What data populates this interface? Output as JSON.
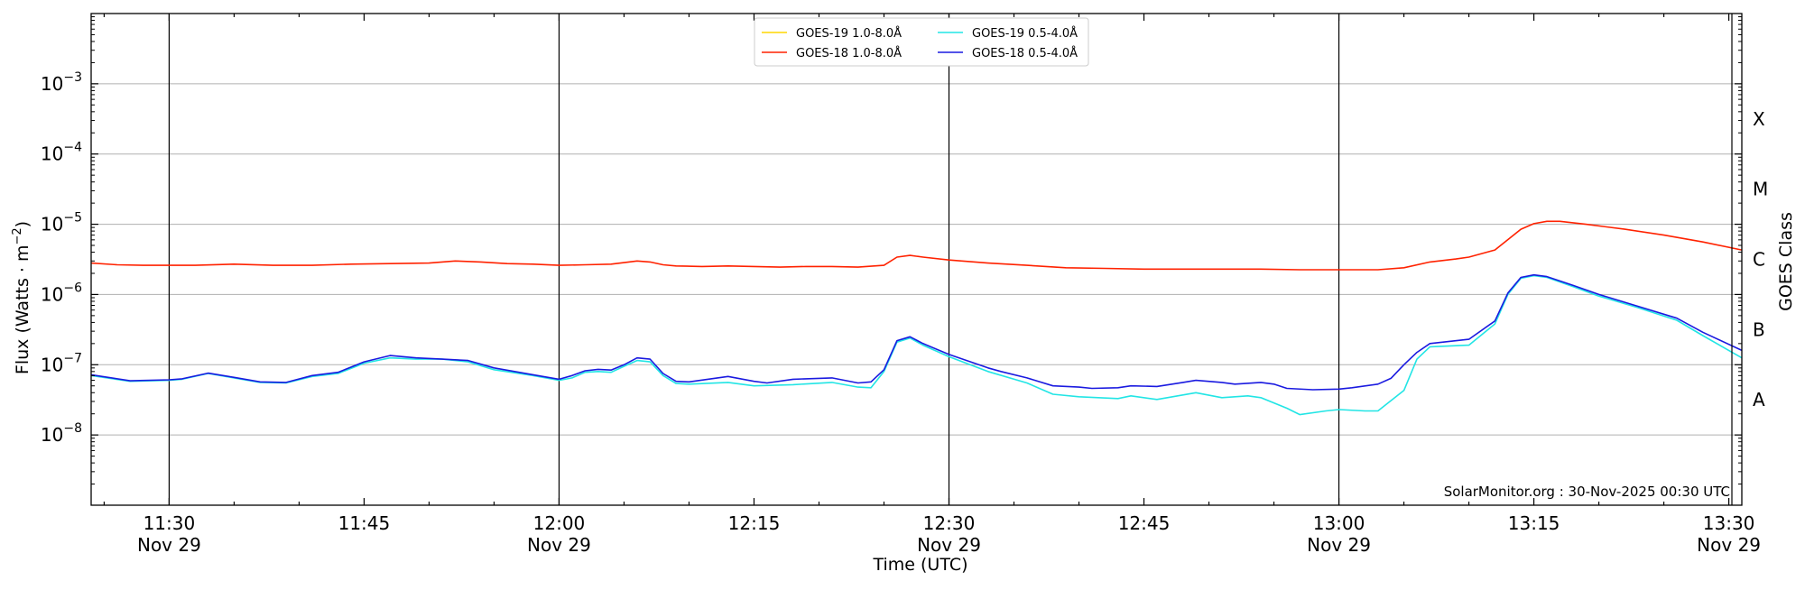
{
  "chart_data": {
    "type": "line",
    "xlabel": "Time (UTC)",
    "ylabel": "Flux (Watts · m",
    "ylabel_sup": "−2",
    "ylabel_close": ")",
    "right_label": "GOES Class",
    "annotation": "SolarMonitor.org : 30-Nov-2025 00:30 UTC",
    "x_range": [
      "11:24",
      "13:31"
    ],
    "y_scale": "log",
    "y_range": [
      1e-09,
      0.01
    ],
    "grid": "horizontal",
    "legend_position": "top-center",
    "x_ticks_major": [
      {
        "time": "11:30",
        "label": "11:30",
        "sublabel": "Nov 29"
      },
      {
        "time": "11:45",
        "label": "11:45",
        "sublabel": ""
      },
      {
        "time": "12:00",
        "label": "12:00",
        "sublabel": "Nov 29"
      },
      {
        "time": "12:15",
        "label": "12:15",
        "sublabel": ""
      },
      {
        "time": "12:30",
        "label": "12:30",
        "sublabel": "Nov 29"
      },
      {
        "time": "12:45",
        "label": "12:45",
        "sublabel": ""
      },
      {
        "time": "13:00",
        "label": "13:00",
        "sublabel": "Nov 29"
      },
      {
        "time": "13:15",
        "label": "13:15",
        "sublabel": ""
      },
      {
        "time": "13:30",
        "label": "13:30",
        "sublabel": "Nov 29"
      }
    ],
    "vertical_lines": [
      "11:30",
      "12:00",
      "12:30",
      "13:00"
    ],
    "y_ticks": [
      {
        "value": 1e-08,
        "base": "10",
        "exp": "−8"
      },
      {
        "value": 1e-07,
        "base": "10",
        "exp": "−7"
      },
      {
        "value": 1e-06,
        "base": "10",
        "exp": "−6"
      },
      {
        "value": 1e-05,
        "base": "10",
        "exp": "−5"
      },
      {
        "value": 0.0001,
        "base": "10",
        "exp": "−4"
      },
      {
        "value": 0.001,
        "base": "10",
        "exp": "−3"
      }
    ],
    "goes_classes": [
      {
        "label": "A",
        "value": 3.16e-08
      },
      {
        "label": "B",
        "value": 3.16e-07
      },
      {
        "label": "C",
        "value": 3.16e-06
      },
      {
        "label": "M",
        "value": 3.16e-05
      },
      {
        "label": "X",
        "value": 0.000316
      }
    ],
    "series": [
      {
        "name": "GOES-19 1.0-8.0Å",
        "color": "#ffd700",
        "visible": false,
        "points": []
      },
      {
        "name": "GOES-18 1.0-8.0Å",
        "color": "#ff2200",
        "points": [
          [
            "11:24",
            2.8e-06
          ],
          [
            "11:26",
            2.65e-06
          ],
          [
            "11:28",
            2.6e-06
          ],
          [
            "11:30",
            2.6e-06
          ],
          [
            "11:32",
            2.6e-06
          ],
          [
            "11:35",
            2.7e-06
          ],
          [
            "11:38",
            2.6e-06
          ],
          [
            "11:41",
            2.6e-06
          ],
          [
            "11:44",
            2.7e-06
          ],
          [
            "11:47",
            2.75e-06
          ],
          [
            "11:50",
            2.8e-06
          ],
          [
            "11:52",
            3e-06
          ],
          [
            "11:54",
            2.9e-06
          ],
          [
            "11:56",
            2.75e-06
          ],
          [
            "11:58",
            2.7e-06
          ],
          [
            "12:00",
            2.6e-06
          ],
          [
            "12:02",
            2.65e-06
          ],
          [
            "12:04",
            2.7e-06
          ],
          [
            "12:06",
            3e-06
          ],
          [
            "12:07",
            2.9e-06
          ],
          [
            "12:08",
            2.65e-06
          ],
          [
            "12:09",
            2.55e-06
          ],
          [
            "12:11",
            2.5e-06
          ],
          [
            "12:13",
            2.55e-06
          ],
          [
            "12:15",
            2.5e-06
          ],
          [
            "12:17",
            2.45e-06
          ],
          [
            "12:19",
            2.5e-06
          ],
          [
            "12:21",
            2.5e-06
          ],
          [
            "12:23",
            2.45e-06
          ],
          [
            "12:25",
            2.6e-06
          ],
          [
            "12:26",
            3.4e-06
          ],
          [
            "12:27",
            3.6e-06
          ],
          [
            "12:28",
            3.4e-06
          ],
          [
            "12:30",
            3.1e-06
          ],
          [
            "12:33",
            2.8e-06
          ],
          [
            "12:36",
            2.6e-06
          ],
          [
            "12:39",
            2.4e-06
          ],
          [
            "12:42",
            2.35e-06
          ],
          [
            "12:45",
            2.3e-06
          ],
          [
            "12:48",
            2.3e-06
          ],
          [
            "12:51",
            2.3e-06
          ],
          [
            "12:54",
            2.3e-06
          ],
          [
            "12:57",
            2.25e-06
          ],
          [
            "13:00",
            2.25e-06
          ],
          [
            "13:03",
            2.25e-06
          ],
          [
            "13:05",
            2.4e-06
          ],
          [
            "13:07",
            2.9e-06
          ],
          [
            "13:09",
            3.2e-06
          ],
          [
            "13:10",
            3.4e-06
          ],
          [
            "13:12",
            4.3e-06
          ],
          [
            "13:14",
            8.5e-06
          ],
          [
            "13:15",
            1.02e-05
          ],
          [
            "13:16",
            1.1e-05
          ],
          [
            "13:17",
            1.1e-05
          ],
          [
            "13:19",
            1e-05
          ],
          [
            "13:22",
            8.5e-06
          ],
          [
            "13:25",
            7e-06
          ],
          [
            "13:28",
            5.6e-06
          ],
          [
            "13:31",
            4.3e-06
          ]
        ]
      },
      {
        "name": "GOES-19 0.5-4.0Å",
        "color": "#22e5e5",
        "points": [
          [
            "11:24",
            7e-08
          ],
          [
            "11:27",
            5.8e-08
          ],
          [
            "11:30",
            6e-08
          ],
          [
            "11:31",
            6.2e-08
          ],
          [
            "11:33",
            7.5e-08
          ],
          [
            "11:35",
            6.5e-08
          ],
          [
            "11:37",
            5.6e-08
          ],
          [
            "11:39",
            5.5e-08
          ],
          [
            "11:41",
            6.8e-08
          ],
          [
            "11:43",
            7.5e-08
          ],
          [
            "11:45",
            1.05e-07
          ],
          [
            "11:47",
            1.25e-07
          ],
          [
            "11:49",
            1.2e-07
          ],
          [
            "11:51",
            1.2e-07
          ],
          [
            "11:53",
            1.1e-07
          ],
          [
            "11:55",
            8.5e-08
          ],
          [
            "11:58",
            7e-08
          ],
          [
            "12:00",
            6e-08
          ],
          [
            "12:01",
            6.5e-08
          ],
          [
            "12:02",
            7.8e-08
          ],
          [
            "12:03",
            8e-08
          ],
          [
            "12:04",
            7.8e-08
          ],
          [
            "12:05",
            9.5e-08
          ],
          [
            "12:06",
            1.15e-07
          ],
          [
            "12:07",
            1.1e-07
          ],
          [
            "12:08",
            7e-08
          ],
          [
            "12:09",
            5.4e-08
          ],
          [
            "12:10",
            5.3e-08
          ],
          [
            "12:13",
            5.6e-08
          ],
          [
            "12:15",
            5e-08
          ],
          [
            "12:18",
            5.2e-08
          ],
          [
            "12:21",
            5.6e-08
          ],
          [
            "12:23",
            4.8e-08
          ],
          [
            "12:24",
            4.7e-08
          ],
          [
            "12:25",
            8e-08
          ],
          [
            "12:26",
            2.1e-07
          ],
          [
            "12:27",
            2.4e-07
          ],
          [
            "12:28",
            1.9e-07
          ],
          [
            "12:30",
            1.3e-07
          ],
          [
            "12:33",
            8e-08
          ],
          [
            "12:36",
            5.5e-08
          ],
          [
            "12:38",
            3.8e-08
          ],
          [
            "12:40",
            3.5e-08
          ],
          [
            "12:43",
            3.3e-08
          ],
          [
            "12:44",
            3.6e-08
          ],
          [
            "12:46",
            3.2e-08
          ],
          [
            "12:49",
            4e-08
          ],
          [
            "12:51",
            3.4e-08
          ],
          [
            "12:53",
            3.6e-08
          ],
          [
            "12:54",
            3.4e-08
          ],
          [
            "12:56",
            2.4e-08
          ],
          [
            "12:57",
            1.95e-08
          ],
          [
            "12:59",
            2.2e-08
          ],
          [
            "13:00",
            2.3e-08
          ],
          [
            "13:02",
            2.2e-08
          ],
          [
            "13:03",
            2.2e-08
          ],
          [
            "13:05",
            4.3e-08
          ],
          [
            "13:06",
            1.2e-07
          ],
          [
            "13:07",
            1.8e-07
          ],
          [
            "13:10",
            1.9e-07
          ],
          [
            "13:12",
            3.8e-07
          ],
          [
            "13:13",
            1e-06
          ],
          [
            "13:14",
            1.7e-06
          ],
          [
            "13:15",
            1.85e-06
          ],
          [
            "13:16",
            1.75e-06
          ],
          [
            "13:18",
            1.3e-06
          ],
          [
            "13:20",
            9.5e-07
          ],
          [
            "13:23",
            6.5e-07
          ],
          [
            "13:26",
            4.3e-07
          ],
          [
            "13:28",
            2.6e-07
          ],
          [
            "13:31",
            1.25e-07
          ]
        ]
      },
      {
        "name": "GOES-18 0.5-4.0Å",
        "color": "#1a1ae0",
        "points": [
          [
            "11:24",
            7.2e-08
          ],
          [
            "11:27",
            5.9e-08
          ],
          [
            "11:30",
            6.1e-08
          ],
          [
            "11:31",
            6.3e-08
          ],
          [
            "11:33",
            7.6e-08
          ],
          [
            "11:35",
            6.6e-08
          ],
          [
            "11:37",
            5.7e-08
          ],
          [
            "11:39",
            5.6e-08
          ],
          [
            "11:41",
            7e-08
          ],
          [
            "11:43",
            7.8e-08
          ],
          [
            "11:45",
            1.1e-07
          ],
          [
            "11:47",
            1.35e-07
          ],
          [
            "11:49",
            1.25e-07
          ],
          [
            "11:51",
            1.2e-07
          ],
          [
            "11:53",
            1.15e-07
          ],
          [
            "11:55",
            9e-08
          ],
          [
            "11:58",
            7.2e-08
          ],
          [
            "12:00",
            6.2e-08
          ],
          [
            "12:01",
            7e-08
          ],
          [
            "12:02",
            8.2e-08
          ],
          [
            "12:03",
            8.6e-08
          ],
          [
            "12:04",
            8.4e-08
          ],
          [
            "12:05",
            1e-07
          ],
          [
            "12:06",
            1.25e-07
          ],
          [
            "12:07",
            1.2e-07
          ],
          [
            "12:08",
            7.5e-08
          ],
          [
            "12:09",
            5.8e-08
          ],
          [
            "12:10",
            5.7e-08
          ],
          [
            "12:13",
            6.8e-08
          ],
          [
            "12:15",
            5.8e-08
          ],
          [
            "12:16",
            5.5e-08
          ],
          [
            "12:18",
            6.2e-08
          ],
          [
            "12:21",
            6.5e-08
          ],
          [
            "12:23",
            5.5e-08
          ],
          [
            "12:24",
            5.7e-08
          ],
          [
            "12:25",
            8.5e-08
          ],
          [
            "12:26",
            2.2e-07
          ],
          [
            "12:27",
            2.5e-07
          ],
          [
            "12:28",
            2e-07
          ],
          [
            "12:30",
            1.4e-07
          ],
          [
            "12:33",
            9e-08
          ],
          [
            "12:34",
            8e-08
          ],
          [
            "12:36",
            6.5e-08
          ],
          [
            "12:38",
            5e-08
          ],
          [
            "12:40",
            4.8e-08
          ],
          [
            "12:41",
            4.6e-08
          ],
          [
            "12:43",
            4.7e-08
          ],
          [
            "12:44",
            5e-08
          ],
          [
            "12:46",
            4.9e-08
          ],
          [
            "12:48",
            5.6e-08
          ],
          [
            "12:49",
            6e-08
          ],
          [
            "12:51",
            5.6e-08
          ],
          [
            "12:52",
            5.3e-08
          ],
          [
            "12:54",
            5.6e-08
          ],
          [
            "12:55",
            5.3e-08
          ],
          [
            "12:56",
            4.6e-08
          ],
          [
            "12:58",
            4.4e-08
          ],
          [
            "13:00",
            4.5e-08
          ],
          [
            "13:01",
            4.7e-08
          ],
          [
            "13:03",
            5.3e-08
          ],
          [
            "13:04",
            6.4e-08
          ],
          [
            "13:05",
            1e-07
          ],
          [
            "13:06",
            1.5e-07
          ],
          [
            "13:07",
            2e-07
          ],
          [
            "13:10",
            2.3e-07
          ],
          [
            "13:12",
            4.2e-07
          ],
          [
            "13:13",
            1.05e-06
          ],
          [
            "13:14",
            1.75e-06
          ],
          [
            "13:15",
            1.9e-06
          ],
          [
            "13:16",
            1.8e-06
          ],
          [
            "13:18",
            1.35e-06
          ],
          [
            "13:20",
            1e-06
          ],
          [
            "13:23",
            6.8e-07
          ],
          [
            "13:26",
            4.6e-07
          ],
          [
            "13:28",
            2.9e-07
          ],
          [
            "13:31",
            1.6e-07
          ]
        ]
      }
    ]
  }
}
